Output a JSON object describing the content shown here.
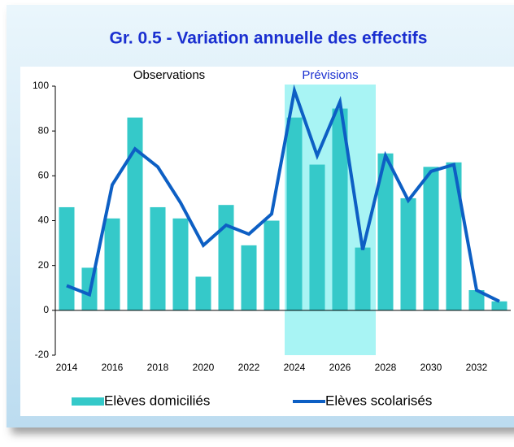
{
  "chart_data": {
    "type": "bar-line",
    "title": "Gr. 0.5 - Variation annuelle des effectifs",
    "annotations": [
      "Observations",
      "Prévisions"
    ],
    "categories": [
      "2014",
      null,
      "2016",
      null,
      "2018",
      null,
      "2020",
      null,
      "2022",
      null,
      "2024",
      null,
      "2026",
      null,
      "2028",
      null,
      "2030",
      null,
      "2032",
      null
    ],
    "series": [
      {
        "name": "Elèves domiciliés",
        "type": "bar",
        "color": "#35c9c9",
        "values": [
          46,
          19,
          41,
          86,
          46,
          41,
          15,
          47,
          29,
          40,
          86,
          65,
          90,
          28,
          70,
          50,
          64,
          66,
          9,
          4
        ]
      },
      {
        "name": "Elèves scolarisés",
        "type": "line",
        "color": "#0d5fc4",
        "values": [
          11,
          7,
          56,
          72,
          64,
          48,
          29,
          38,
          34,
          43,
          98,
          69,
          93,
          27,
          69,
          49,
          62,
          65,
          9,
          4
        ]
      }
    ],
    "ylim": [
      -20,
      100
    ],
    "yticks": [
      -20,
      0,
      20,
      40,
      60,
      80,
      100
    ],
    "grid": false,
    "legend": "bottom"
  }
}
